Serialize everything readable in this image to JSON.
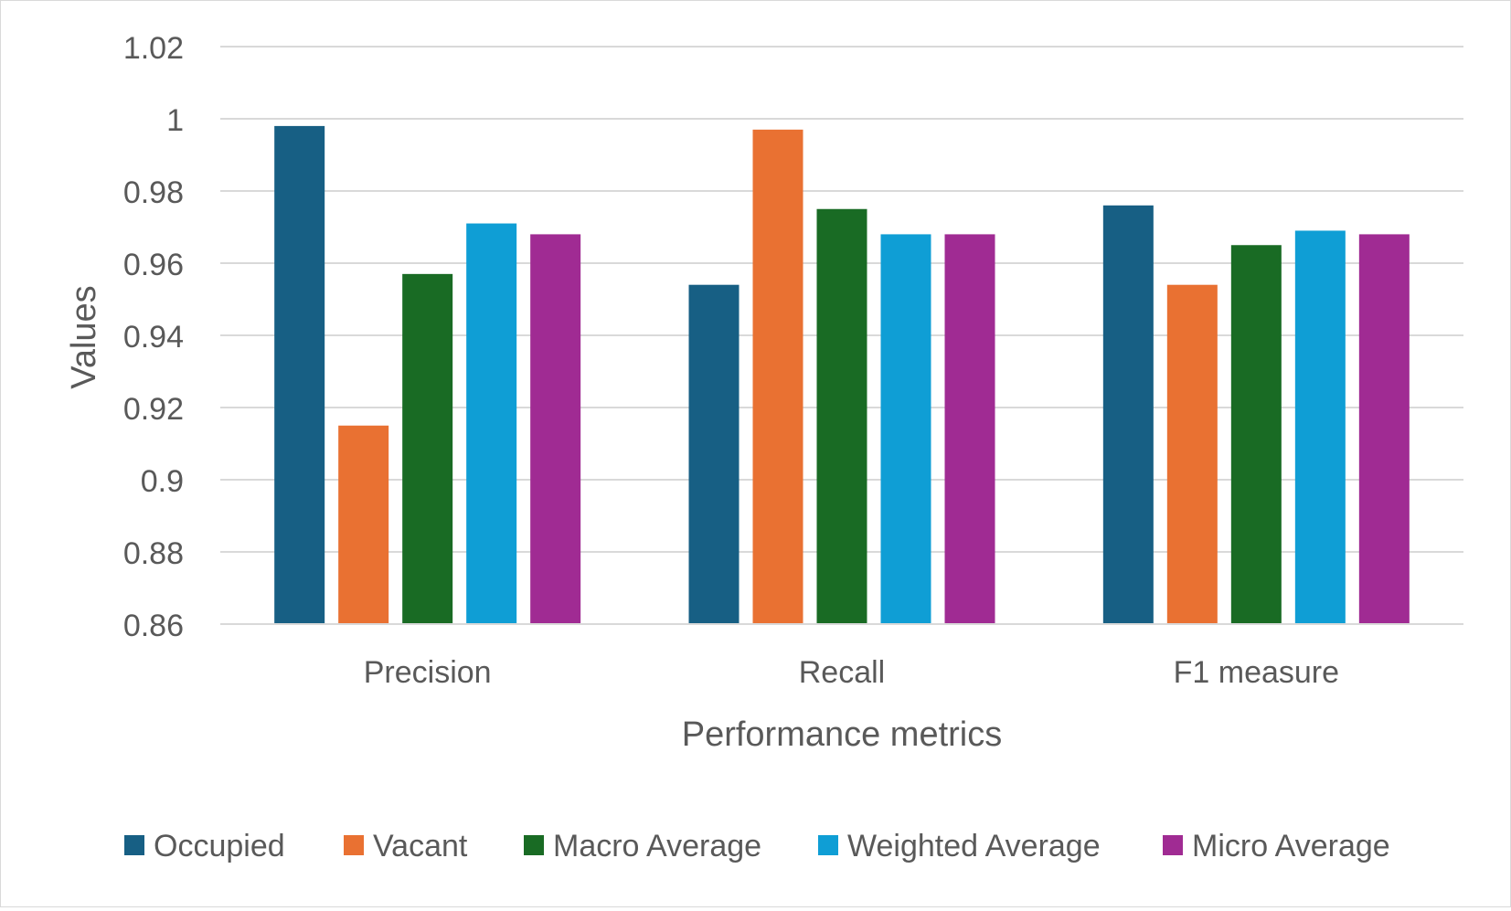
{
  "chart_data": {
    "type": "bar",
    "title": "",
    "xlabel": "Performance metrics",
    "ylabel": "Values",
    "categories": [
      "Precision",
      "Recall",
      "F1 measure"
    ],
    "series": [
      {
        "name": "Occupied",
        "color": "#175f84",
        "values": [
          0.998,
          0.954,
          0.976
        ]
      },
      {
        "name": "Vacant",
        "color": "#e97132",
        "values": [
          0.915,
          0.997,
          0.954
        ]
      },
      {
        "name": "Macro Average",
        "color": "#196b24",
        "values": [
          0.957,
          0.975,
          0.965
        ]
      },
      {
        "name": "Weighted Average",
        "color": "#0f9ed5",
        "values": [
          0.971,
          0.968,
          0.969
        ]
      },
      {
        "name": "Micro Average",
        "color": "#a02b93",
        "values": [
          0.968,
          0.968,
          0.968
        ]
      }
    ],
    "ylim": [
      0.86,
      1.02
    ],
    "yticks": [
      "0.86",
      "0.88",
      "0.9",
      "0.92",
      "0.94",
      "0.96",
      "0.98",
      "1",
      "1.02"
    ],
    "grid": true,
    "legend": "bottom"
  }
}
